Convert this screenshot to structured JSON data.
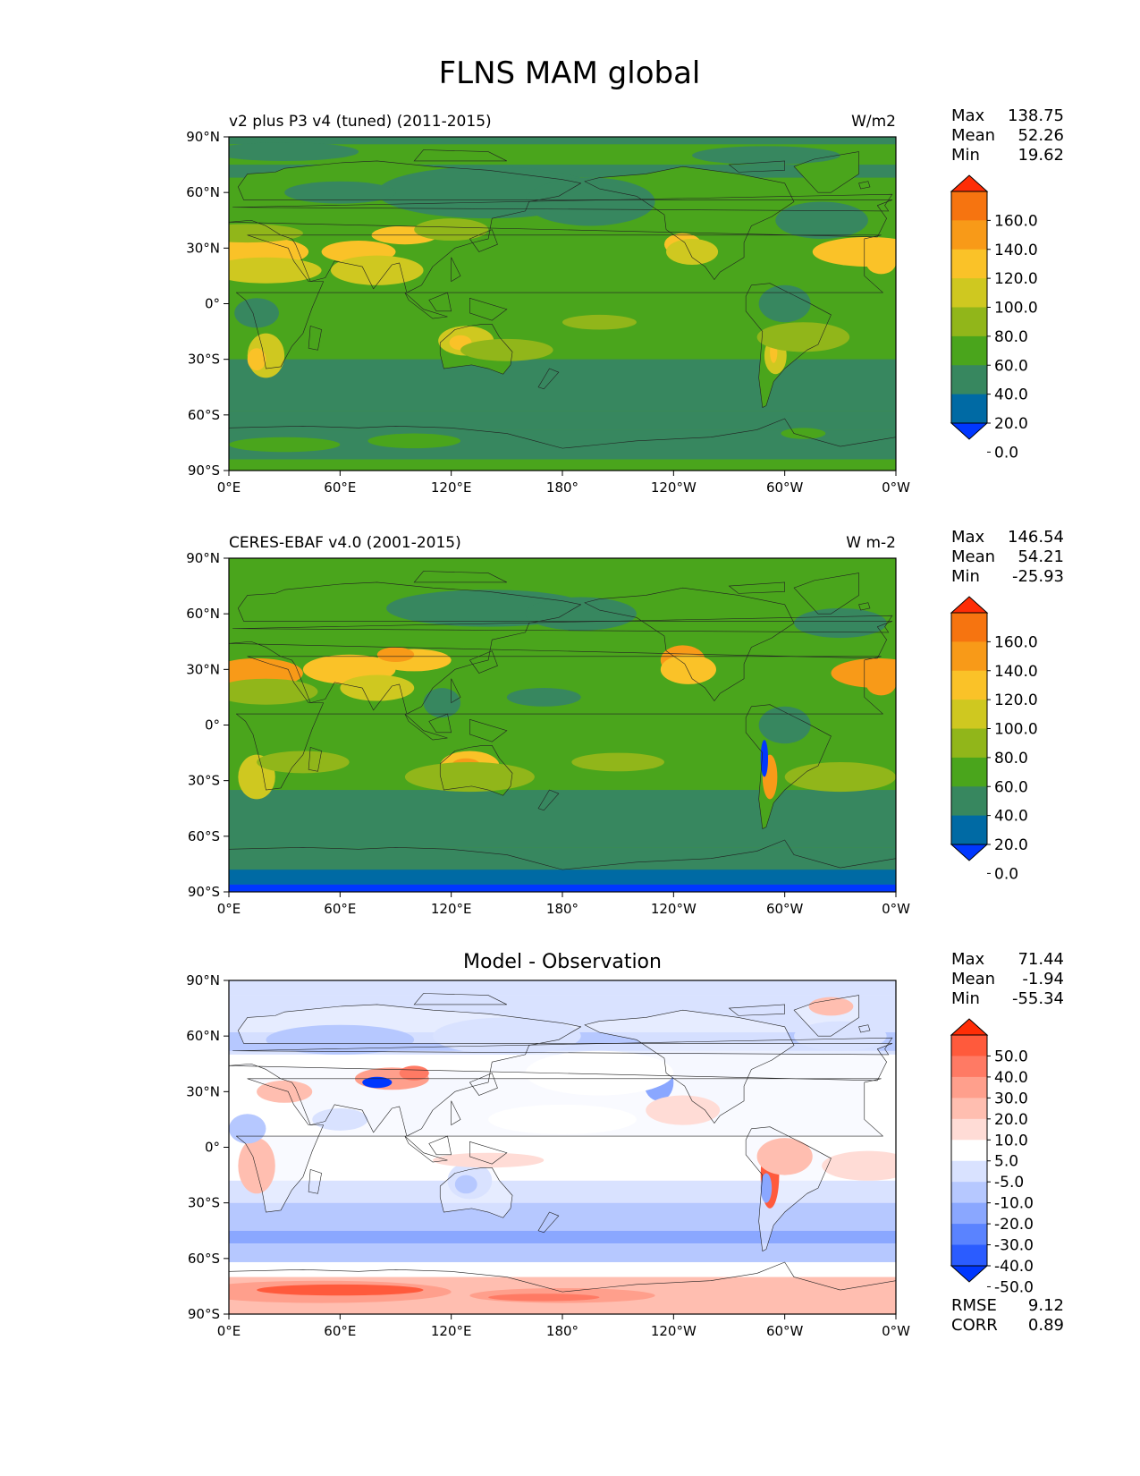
{
  "suptitle": "FLNS MAM global",
  "colors": {
    "abs": [
      "#0037ff",
      "#006aa4",
      "#37875f",
      "#4aa51c",
      "#91b61a",
      "#cfc820",
      "#fac228",
      "#f89a18",
      "#f67410",
      "#fe2d06"
    ],
    "diff": [
      "#0037ff",
      "#2b5cff",
      "#5a83ff",
      "#8aa7ff",
      "#b6c8ff",
      "#d9e2ff",
      "#ffffff",
      "#ffdcd6",
      "#ffbeb0",
      "#ff9f8c",
      "#ff7a64",
      "#ff5a3c",
      "#ff2d06"
    ],
    "coast": "#222222"
  },
  "lon_ticks": [
    "0°E",
    "60°E",
    "120°E",
    "180°",
    "120°W",
    "60°W",
    "0°W"
  ],
  "lat_ticks": [
    "90°N",
    "60°N",
    "30°N",
    "0°",
    "30°S",
    "60°S",
    "90°S"
  ],
  "panels": [
    {
      "left_title": "v2 plus P3 v4 (tuned) (2011-2015)",
      "right_title": "W/m2",
      "center_title": "",
      "stats": [
        {
          "label": "Max",
          "value": "138.75"
        },
        {
          "label": "Mean",
          "value": "52.26"
        },
        {
          "label": "Min",
          "value": "19.62"
        }
      ],
      "colorbar_labels": [
        "160.0",
        "140.0",
        "120.0",
        "100.0",
        "80.0",
        "60.0",
        "40.0",
        "20.0",
        "0.0"
      ]
    },
    {
      "left_title": "CERES-EBAF v4.0 (2001-2015)",
      "right_title": "W m-2",
      "center_title": "",
      "stats": [
        {
          "label": "Max",
          "value": "146.54"
        },
        {
          "label": "Mean",
          "value": "54.21"
        },
        {
          "label": "Min",
          "value": "-25.93"
        }
      ],
      "colorbar_labels": [
        "160.0",
        "140.0",
        "120.0",
        "100.0",
        "80.0",
        "60.0",
        "40.0",
        "20.0",
        "0.0"
      ]
    },
    {
      "left_title": "",
      "right_title": "",
      "center_title": "Model - Observation",
      "stats": [
        {
          "label": "Max",
          "value": "71.44"
        },
        {
          "label": "Mean",
          "value": "-1.94"
        },
        {
          "label": "Min",
          "value": "-55.34"
        }
      ],
      "colorbar_labels": [
        "50.0",
        "40.0",
        "30.0",
        "20.0",
        "10.0",
        "5.0",
        "-5.0",
        "-10.0",
        "-20.0",
        "-30.0",
        "-40.0",
        "-50.0"
      ],
      "metrics": [
        {
          "label": "RMSE",
          "value": "9.12"
        },
        {
          "label": "CORR",
          "value": "0.89"
        }
      ]
    }
  ],
  "chart_data": [
    {
      "type": "heatmap",
      "title": "v2 plus P3 v4 (tuned) (2011-2015)",
      "units": "W/m2",
      "variable": "FLNS",
      "season": "MAM",
      "xlim": [
        0,
        360
      ],
      "ylim": [
        -90,
        90
      ],
      "xticks": [
        "0°E",
        "60°E",
        "120°E",
        "180°",
        "120°W",
        "60°W",
        "0°W"
      ],
      "yticks": [
        "90°N",
        "60°N",
        "30°N",
        "0°",
        "30°S",
        "60°S",
        "90°S"
      ],
      "levels": [
        0,
        20,
        40,
        60,
        80,
        100,
        120,
        140,
        160
      ],
      "colorbar_extend": "both",
      "stats": {
        "max": 138.75,
        "mean": 52.26,
        "min": 19.62
      },
      "grid": false
    },
    {
      "type": "heatmap",
      "title": "CERES-EBAF v4.0 (2001-2015)",
      "units": "W m-2",
      "variable": "FLNS",
      "season": "MAM",
      "xlim": [
        0,
        360
      ],
      "ylim": [
        -90,
        90
      ],
      "xticks": [
        "0°E",
        "60°E",
        "120°E",
        "180°",
        "120°W",
        "60°W",
        "0°W"
      ],
      "yticks": [
        "90°N",
        "60°N",
        "30°N",
        "0°",
        "30°S",
        "60°S",
        "90°S"
      ],
      "levels": [
        0,
        20,
        40,
        60,
        80,
        100,
        120,
        140,
        160
      ],
      "colorbar_extend": "both",
      "stats": {
        "max": 146.54,
        "mean": 54.21,
        "min": -25.93
      },
      "grid": false
    },
    {
      "type": "heatmap",
      "title": "Model - Observation",
      "xlim": [
        0,
        360
      ],
      "ylim": [
        -90,
        90
      ],
      "xticks": [
        "0°E",
        "60°E",
        "120°E",
        "180°",
        "120°W",
        "60°W",
        "0°W"
      ],
      "yticks": [
        "90°N",
        "60°N",
        "30°N",
        "0°",
        "30°S",
        "60°S",
        "90°S"
      ],
      "levels": [
        -50,
        -40,
        -30,
        -20,
        -10,
        -5,
        5,
        10,
        20,
        30,
        40,
        50
      ],
      "colorbar_extend": "both",
      "stats": {
        "max": 71.44,
        "mean": -1.94,
        "min": -55.34,
        "rmse": 9.12,
        "corr": 0.89
      },
      "grid": false
    }
  ]
}
